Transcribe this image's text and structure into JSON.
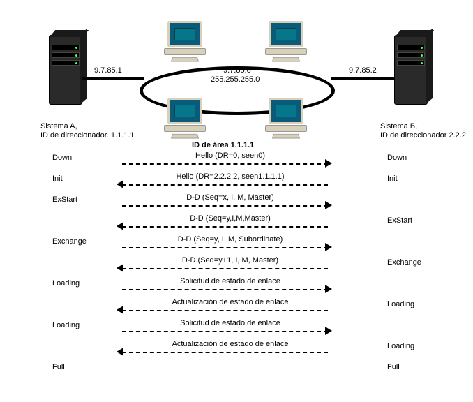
{
  "topology": {
    "serverA_ip": "9.7.85.1",
    "serverB_ip": "9.7.85.2",
    "network_ip": "9.7.85.0",
    "network_mask": "255.255.255.0",
    "systemA_name": "Sistema A,",
    "systemA_id": "ID de direccionador. 1.1.1.1",
    "systemB_name": "Sistema B,",
    "systemB_id": "ID de direccionador 2.2.2.",
    "area_label": "ID de área 1.1.1.1",
    "colors": {
      "server_body": "#2a2a2a",
      "pc_bezel": "#d8d0b8",
      "pc_screen": "#0a5a7a",
      "line": "#000000",
      "text": "#000000",
      "bg": "#ffffff"
    }
  },
  "exchange": [
    {
      "stateA": "Down",
      "msg": "Hello (DR=0, seen0)",
      "dir": "right",
      "stateB": "Down"
    },
    {
      "stateA": "Init",
      "msg": "Hello (DR=2.2.2.2, seen1.1.1.1)",
      "dir": "left",
      "stateB": "Init"
    },
    {
      "stateA": "ExStart",
      "msg": "D-D (Seq=x, I, M, Master)",
      "dir": "right",
      "stateB": ""
    },
    {
      "stateA": "",
      "msg": "D-D (Seq=y,I,M,Master)",
      "dir": "left",
      "stateB": "ExStart"
    },
    {
      "stateA": "Exchange",
      "msg": "D-D (Seq=y, I, M, Subordinate)",
      "dir": "right",
      "stateB": ""
    },
    {
      "stateA": "",
      "msg": "D-D (Seq=y+1, I, M, Master)",
      "dir": "left",
      "stateB": "Exchange"
    },
    {
      "stateA": "Loading",
      "msg": "Solicitud de estado de enlace",
      "dir": "right",
      "stateB": ""
    },
    {
      "stateA": "",
      "msg": "Actualización de estado de enlace",
      "dir": "left",
      "stateB": "Loading"
    },
    {
      "stateA": "Loading",
      "msg": "Solicitud de estado de enlace",
      "dir": "right",
      "stateB": ""
    },
    {
      "stateA": "",
      "msg": "Actualización de estado de enlace",
      "dir": "left",
      "stateB": "Loading"
    },
    {
      "stateA": "Full",
      "msg": "",
      "dir": "none",
      "stateB": "Full"
    }
  ]
}
